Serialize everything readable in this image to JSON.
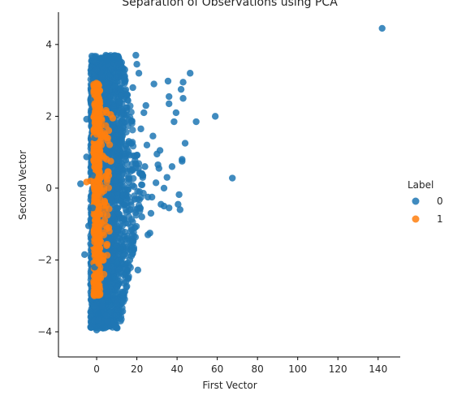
{
  "chart_data": {
    "type": "scatter",
    "title": "Separation of Observations using PCA",
    "xlabel": "First Vector",
    "ylabel": "Second Vector",
    "xlim": [
      -19,
      151
    ],
    "ylim": [
      -4.7,
      4.9
    ],
    "xticks": [
      0,
      20,
      40,
      60,
      80,
      100,
      120,
      140
    ],
    "yticks": [
      -4,
      -2,
      0,
      2,
      4
    ],
    "grid": false,
    "legend": {
      "title": "Label",
      "placement": "right",
      "entries": [
        {
          "label": "0",
          "color": "#1f77b4"
        },
        {
          "label": "1",
          "color": "#ff7f0e"
        }
      ]
    },
    "series": [
      {
        "name": "0",
        "color": "#1f77b4",
        "points": [
          [
            142,
            4.45
          ],
          [
            67.5,
            0.28
          ],
          [
            59,
            2.0
          ],
          [
            49.5,
            1.85
          ],
          [
            46.5,
            3.2
          ],
          [
            44,
            1.25
          ],
          [
            43,
            2.95
          ],
          [
            43,
            2.5
          ],
          [
            42.5,
            0.8
          ],
          [
            42.5,
            0.75
          ],
          [
            42,
            2.75
          ],
          [
            41.5,
            -0.6
          ],
          [
            41,
            -0.18
          ],
          [
            40.5,
            -0.45
          ],
          [
            39.5,
            2.1
          ],
          [
            38.5,
            1.85
          ],
          [
            37.5,
            0.6
          ],
          [
            36,
            -0.55
          ],
          [
            36,
            2.35
          ],
          [
            36,
            2.55
          ],
          [
            35.5,
            2.98
          ],
          [
            35,
            0.3
          ],
          [
            33.5,
            0.0
          ],
          [
            33.5,
            -0.5
          ],
          [
            32,
            -0.45
          ],
          [
            31.5,
            1.05
          ],
          [
            31,
            0.55
          ],
          [
            30.5,
            0.65
          ],
          [
            30,
            0.95
          ],
          [
            29.5,
            0.15
          ],
          [
            28.5,
            2.9
          ],
          [
            28,
            1.45
          ],
          [
            27.5,
            -0.25
          ],
          [
            27,
            -0.7
          ],
          [
            26.5,
            -1.25
          ],
          [
            25.5,
            -1.3
          ],
          [
            25.5,
            -0.25
          ],
          [
            25,
            1.2
          ],
          [
            24.5,
            2.3
          ],
          [
            24,
            0.6
          ],
          [
            23.5,
            2.1
          ],
          [
            23,
            0.35
          ],
          [
            22.5,
            -0.8
          ],
          [
            22,
            1.65
          ],
          [
            21.5,
            -0.55
          ],
          [
            21,
            3.2
          ],
          [
            20.5,
            -2.28
          ],
          [
            20,
            3.45
          ],
          [
            19.5,
            3.7
          ],
          [
            19,
            -1.1
          ],
          [
            18.5,
            0.9
          ],
          [
            18,
            2.8
          ],
          [
            17,
            -1.6
          ],
          [
            16.5,
            -2.0
          ],
          [
            16,
            1.3
          ],
          [
            15.5,
            -2.3
          ],
          [
            14,
            3.3
          ],
          [
            13,
            -2.1
          ],
          [
            12,
            -1.7
          ],
          [
            11,
            0.9
          ],
          [
            -8,
            0.12
          ],
          [
            -6,
            -1.85
          ],
          [
            -5,
            1.92
          ],
          [
            -5,
            0.87
          ],
          [
            -4,
            -1.05
          ],
          [
            -3,
            -1.55
          ],
          [
            -3,
            2.45
          ],
          [
            -2,
            -0.55
          ],
          [
            -2,
            0.35
          ],
          [
            -1,
            1.4
          ],
          [
            -1,
            -2.2
          ],
          [
            0,
            -3.95
          ],
          [
            1,
            -3.5
          ],
          [
            2,
            3.62
          ],
          [
            3,
            -3.9
          ],
          [
            4,
            -2.6
          ],
          [
            5,
            3.55
          ],
          [
            6,
            -3.15
          ],
          [
            7,
            3.65
          ],
          [
            8,
            -2.5
          ],
          [
            9,
            3.58
          ],
          [
            10,
            -2.1
          ],
          [
            6,
            1.6
          ],
          [
            8,
            1.7
          ],
          [
            10,
            1.3
          ]
        ]
      },
      {
        "name": "1",
        "color": "#ff7f0e",
        "points": [
          [
            -5,
            0.17
          ],
          [
            -3,
            0.2
          ],
          [
            0,
            2.9
          ],
          [
            0,
            2.7
          ],
          [
            -1,
            2.35
          ],
          [
            0,
            2.1
          ],
          [
            1,
            1.8
          ],
          [
            0,
            1.5
          ],
          [
            1,
            1.2
          ],
          [
            -1,
            0.9
          ],
          [
            0,
            0.6
          ],
          [
            1,
            0.3
          ],
          [
            0,
            0.0
          ],
          [
            -1,
            -0.3
          ],
          [
            1,
            -0.6
          ],
          [
            0,
            -0.9
          ],
          [
            1,
            -1.2
          ],
          [
            -1,
            -1.5
          ],
          [
            0,
            -1.8
          ],
          [
            1,
            -2.1
          ],
          [
            0,
            -2.4
          ],
          [
            1,
            -2.7
          ],
          [
            -1,
            -2.95
          ],
          [
            3,
            2.1
          ],
          [
            5,
            2.1
          ],
          [
            7,
            2.05
          ],
          [
            8,
            1.95
          ],
          [
            4,
            1.5
          ],
          [
            5,
            0.8
          ],
          [
            6,
            0.35
          ],
          [
            4,
            -0.4
          ],
          [
            6,
            -1.1
          ],
          [
            5,
            -1.6
          ],
          [
            3,
            -2.0
          ],
          [
            2,
            -2.5
          ],
          [
            3,
            0.9
          ],
          [
            2,
            1.3
          ],
          [
            4,
            -0.9
          ],
          [
            7,
            0.75
          ],
          [
            6,
            1.6
          ]
        ]
      }
    ]
  }
}
